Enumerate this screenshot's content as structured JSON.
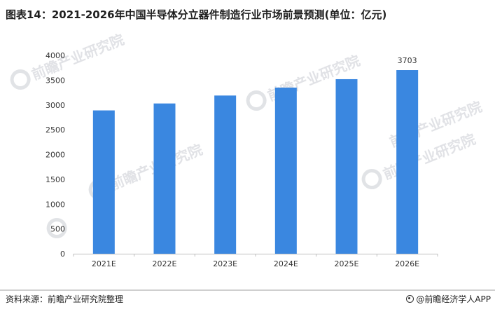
{
  "header": {
    "title": "图表14：2021-2026年中国半导体分立器件制造行业市场前景预测(单位：亿元)"
  },
  "footer": {
    "source": "资料来源：前瞻产业研究院整理",
    "brand": "@前瞻经济学人APP"
  },
  "colors": {
    "bar": "#3a87e0",
    "axis": "#bfbfbf"
  },
  "chart_data": {
    "type": "bar",
    "title": "图表14：2021-2026年中国半导体分立器件制造行业市场前景预测(单位：亿元)",
    "xlabel": "",
    "ylabel": "",
    "categories": [
      "2021E",
      "2022E",
      "2023E",
      "2024E",
      "2025E",
      "2026E"
    ],
    "values": [
      2890,
      3030,
      3190,
      3350,
      3520,
      3703
    ],
    "data_labels": [
      "",
      "",
      "",
      "",
      "",
      "3703"
    ],
    "ylim": [
      0,
      4000
    ],
    "yticks": [
      0,
      500,
      1000,
      1500,
      2000,
      2500,
      3000,
      3500,
      4000
    ],
    "grid": false,
    "legend": "none"
  }
}
